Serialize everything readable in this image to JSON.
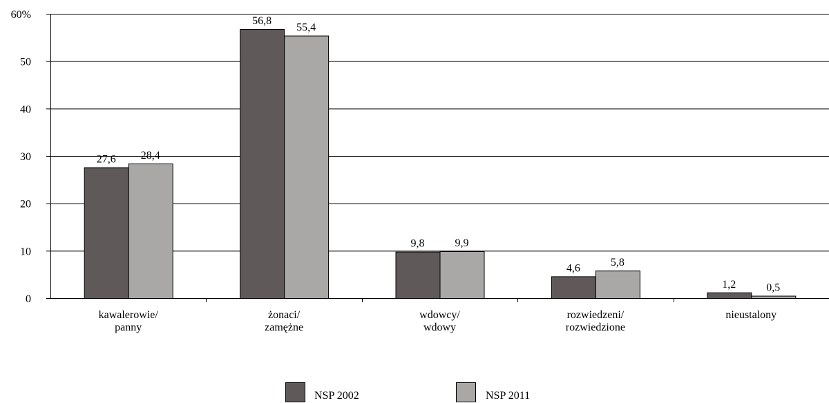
{
  "chart_data": {
    "type": "bar",
    "title": "",
    "xlabel": "",
    "ylabel": "",
    "ylim": [
      0,
      60
    ],
    "y_ticks": [
      "0",
      "10",
      "20",
      "30",
      "40",
      "50",
      "60%"
    ],
    "y_tick_values": [
      0,
      10,
      20,
      30,
      40,
      50,
      60
    ],
    "categories": [
      [
        "kawalerowie/",
        "panny"
      ],
      [
        "żonaci/",
        "zamężne"
      ],
      [
        "wdowcy/",
        "wdowy"
      ],
      [
        "rozwiedzeni/",
        "rozwiedzione"
      ],
      [
        "nieustalony"
      ]
    ],
    "series": [
      {
        "name": "NSP 2002",
        "color": "#5f5a59",
        "values": [
          27.6,
          56.8,
          9.8,
          4.6,
          1.2
        ],
        "labels": [
          "27,6",
          "56,8",
          "9,8",
          "4,6",
          "1,2"
        ]
      },
      {
        "name": "NSP 2011",
        "color": "#a9a8a7",
        "values": [
          28.4,
          55.4,
          9.9,
          5.8,
          0.5
        ],
        "labels": [
          "28,4",
          "55,4",
          "9,9",
          "5,8",
          "0,5"
        ]
      }
    ],
    "grid": true,
    "legend_position": "bottom-center"
  }
}
